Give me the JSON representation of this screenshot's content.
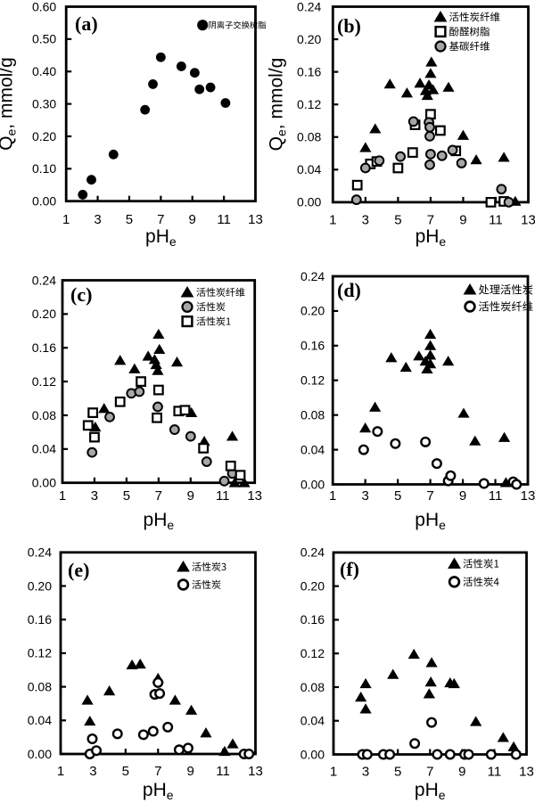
{
  "figure": {
    "background": "#ffffff",
    "colors": {
      "ink": "#000000",
      "gray_marker_fill": "#a6a6a6",
      "white": "#ffffff"
    }
  },
  "chart_data": [
    {
      "id": "a",
      "type": "scatter",
      "panel_label": "(a)",
      "x": {
        "label": "pH",
        "label_sub": "e",
        "min": 1,
        "max": 13,
        "ticks": [
          1,
          3,
          5,
          7,
          9,
          11,
          13
        ]
      },
      "y": {
        "label": "Q",
        "label_sub": "e",
        "label_suffix": ", mmol/g",
        "show_label": true,
        "min": 0,
        "max": 0.6,
        "tick_labels": [
          "0.00",
          "0.10",
          "0.20",
          "0.30",
          "0.40",
          "0.50",
          "0.60"
        ]
      },
      "series": [
        {
          "name": "阴离子交换树脂",
          "marker": "circle-filled",
          "points": [
            [
              2.05,
              0.02
            ],
            [
              2.6,
              0.066
            ],
            [
              4.0,
              0.144
            ],
            [
              6.0,
              0.282
            ],
            [
              6.5,
              0.361
            ],
            [
              7.0,
              0.444
            ],
            [
              8.3,
              0.416
            ],
            [
              9.15,
              0.396
            ],
            [
              9.45,
              0.345
            ],
            [
              10.15,
              0.351
            ],
            [
              11.1,
              0.303
            ]
          ]
        }
      ],
      "layout": {
        "frame": [
          74.2,
          7.5,
          286.5,
          225.7
        ],
        "legend": [
          227.2,
          28.2,
          16.5,
          233.5,
          9.3
        ],
        "ytick_gap": 11,
        "letter": [
          84,
          34
        ],
        "xtick_baseline": 251,
        "xlabel_baseline": 272,
        "ylabel_center": [
          13.5,
          116.5
        ]
      }
    },
    {
      "id": "b",
      "type": "scatter",
      "panel_label": "(b)",
      "x": {
        "label": "pH",
        "label_sub": "e",
        "min": 1,
        "max": 13,
        "ticks": [
          1,
          3,
          5,
          7,
          9,
          11,
          13
        ]
      },
      "y": {
        "label": "Q",
        "label_sub": "e",
        "label_suffix": ", mmol/g",
        "show_label": true,
        "min": 0,
        "max": 0.24,
        "tick_labels": [
          "0.00",
          "0.04",
          "0.08",
          "0.12",
          "0.16",
          "0.20",
          "0.24"
        ]
      },
      "series": [
        {
          "name": "活性炭纤维",
          "marker": "triangle-filled",
          "points": [
            [
              3.0,
              0.067
            ],
            [
              3.6,
              0.09
            ],
            [
              4.5,
              0.145
            ],
            [
              5.55,
              0.134
            ],
            [
              6.35,
              0.146
            ],
            [
              6.7,
              0.137
            ],
            [
              6.8,
              0.131
            ],
            [
              6.9,
              0.144
            ],
            [
              7.0,
              0.158
            ],
            [
              7.05,
              0.172
            ],
            [
              7.15,
              0.138
            ],
            [
              8.1,
              0.141
            ],
            [
              9.0,
              0.082
            ],
            [
              9.8,
              0.052
            ],
            [
              11.5,
              0.055
            ],
            [
              12.2,
              0.001
            ]
          ]
        },
        {
          "name": "酚醛树脂",
          "marker": "square-open",
          "points": [
            [
              2.5,
              0.021
            ],
            [
              3.3,
              0.047
            ],
            [
              3.7,
              0.05
            ],
            [
              5.0,
              0.042
            ],
            [
              5.9,
              0.061
            ],
            [
              6.05,
              0.095
            ],
            [
              7.0,
              0.108
            ],
            [
              7.6,
              0.088
            ],
            [
              8.55,
              0.063
            ],
            [
              10.7,
              0.0
            ],
            [
              11.5,
              0.001
            ]
          ]
        },
        {
          "name": "基碳纤维",
          "marker": "circle-gray",
          "points": [
            [
              2.45,
              0.003
            ],
            [
              3.0,
              0.042
            ],
            [
              3.85,
              0.051
            ],
            [
              5.15,
              0.056
            ],
            [
              5.95,
              0.099
            ],
            [
              6.9,
              0.098
            ],
            [
              6.95,
              0.092
            ],
            [
              6.95,
              0.081
            ],
            [
              6.95,
              0.046
            ],
            [
              7.0,
              0.059
            ],
            [
              7.7,
              0.057
            ],
            [
              8.35,
              0.064
            ],
            [
              8.9,
              0.048
            ],
            [
              11.35,
              0.016
            ],
            [
              11.8,
              0.0
            ]
          ]
        }
      ],
      "layout": {
        "frame": [
          373.3,
          7.5,
          592.5,
          226.9
        ],
        "legend": [
          494,
          19,
          16.5,
          503.5,
          11.5
        ],
        "ytick_gap": 13,
        "letter": [
          378,
          36.5
        ],
        "xtick_baseline": 251.5,
        "xlabel_baseline": 272,
        "ylabel_center": [
          316.5,
          117
        ]
      }
    },
    {
      "id": "c",
      "type": "scatter",
      "panel_label": "(c)",
      "x": {
        "label": "pH",
        "label_sub": "e",
        "min": 1,
        "max": 13,
        "ticks": [
          1,
          3,
          5,
          7,
          9,
          11,
          13
        ]
      },
      "y": {
        "label": "Q",
        "label_sub": "e",
        "label_suffix": ", mmol/g",
        "show_label": false,
        "min": 0,
        "max": 0.24,
        "tick_labels": [
          "0.00",
          "0.04",
          "0.08",
          "0.12",
          "0.16",
          "0.20",
          "0.24"
        ]
      },
      "series": [
        {
          "name": "活性炭纤维",
          "marker": "triangle-filled",
          "points": [
            [
              3.05,
              0.066
            ],
            [
              3.6,
              0.088
            ],
            [
              4.6,
              0.145
            ],
            [
              5.5,
              0.135
            ],
            [
              6.35,
              0.15
            ],
            [
              6.75,
              0.146
            ],
            [
              6.85,
              0.14
            ],
            [
              6.95,
              0.133
            ],
            [
              7.0,
              0.176
            ],
            [
              7.05,
              0.158
            ],
            [
              8.15,
              0.143
            ],
            [
              9.05,
              0.083
            ],
            [
              9.85,
              0.049
            ],
            [
              11.6,
              0.055
            ],
            [
              11.75,
              0.0
            ],
            [
              12.35,
              0.0
            ]
          ]
        },
        {
          "name": "活性炭",
          "marker": "circle-gray",
          "points": [
            [
              2.85,
              0.036
            ],
            [
              3.95,
              0.078
            ],
            [
              5.3,
              0.106
            ],
            [
              5.8,
              0.108
            ],
            [
              6.95,
              0.09
            ],
            [
              8.0,
              0.063
            ],
            [
              9.0,
              0.055
            ],
            [
              10.0,
              0.025
            ],
            [
              11.1,
              0.002
            ],
            [
              11.6,
              0.011
            ]
          ]
        },
        {
          "name": "活性炭1",
          "marker": "square-open",
          "points": [
            [
              2.6,
              0.068
            ],
            [
              2.9,
              0.083
            ],
            [
              3.0,
              0.054
            ],
            [
              4.6,
              0.096
            ],
            [
              5.9,
              0.12
            ],
            [
              6.9,
              0.077
            ],
            [
              7.0,
              0.11
            ],
            [
              8.25,
              0.085
            ],
            [
              8.65,
              0.086
            ],
            [
              9.8,
              0.041
            ],
            [
              11.5,
              0.02
            ],
            [
              12.1,
              0.009
            ]
          ]
        }
      ],
      "layout": {
        "frame": [
          70,
          314.5,
          285.7,
          541.7
        ],
        "legend": [
          210,
          328,
          16.3,
          220,
          11
        ],
        "ytick_gap": 7,
        "letter": [
          79,
          338
        ],
        "xtick_baseline": 561,
        "xlabel_baseline": 590,
        "ylabel_center": null
      }
    },
    {
      "id": "d",
      "type": "scatter",
      "panel_label": "(d)",
      "x": {
        "label": "pH",
        "label_sub": "e",
        "min": 1,
        "max": 13,
        "ticks": [
          1,
          3,
          5,
          7,
          9,
          11,
          13
        ]
      },
      "y": {
        "label": "Q",
        "label_sub": "e",
        "label_suffix": ", mmol/g",
        "show_label": false,
        "min": 0,
        "max": 0.24,
        "tick_labels": [
          "0.00",
          "0.04",
          "0.08",
          "0.12",
          "0.16",
          "0.20",
          "0.24"
        ]
      },
      "series": [
        {
          "name": "处理活性炭",
          "marker": "triangle-filled",
          "points": [
            [
              3.0,
              0.065
            ],
            [
              3.6,
              0.089
            ],
            [
              4.6,
              0.146
            ],
            [
              5.5,
              0.135
            ],
            [
              6.3,
              0.148
            ],
            [
              6.7,
              0.142
            ],
            [
              6.8,
              0.133
            ],
            [
              7.0,
              0.139
            ],
            [
              7.0,
              0.149
            ],
            [
              7.0,
              0.16
            ],
            [
              7.0,
              0.173
            ],
            [
              8.1,
              0.142
            ],
            [
              9.05,
              0.082
            ],
            [
              9.75,
              0.05
            ],
            [
              11.55,
              0.054
            ],
            [
              11.65,
              0.002
            ]
          ]
        },
        {
          "name": "活性炭纤维",
          "marker": "circle-open",
          "points": [
            [
              2.9,
              0.04
            ],
            [
              3.75,
              0.061
            ],
            [
              4.85,
              0.047
            ],
            [
              6.7,
              0.049
            ],
            [
              7.4,
              0.024
            ],
            [
              8.1,
              0.004
            ],
            [
              8.25,
              0.01
            ],
            [
              10.3,
              0.001
            ],
            [
              12.1,
              0.003
            ],
            [
              12.3,
              0.0
            ]
          ]
        }
      ],
      "layout": {
        "frame": [
          373.2,
          310,
          592,
          543.5
        ],
        "legend": [
          527,
          325,
          19,
          536.5,
          12.3
        ],
        "ytick_gap": 9,
        "letter": [
          378,
          333
        ],
        "xtick_baseline": 561,
        "xlabel_baseline": 590,
        "ylabel_center": null
      }
    },
    {
      "id": "e",
      "type": "scatter",
      "panel_label": "(e)",
      "x": {
        "label": "pH",
        "label_sub": "e",
        "min": 1,
        "max": 13,
        "ticks": [
          1,
          3,
          5,
          7,
          9,
          11,
          13
        ]
      },
      "y": {
        "label": "Q",
        "label_sub": "e",
        "label_suffix": ", mmol/g",
        "show_label": false,
        "min": 0,
        "max": 0.24,
        "tick_labels": [
          "0.00",
          "0.04",
          "0.08",
          "0.12",
          "0.16",
          "0.20",
          "0.24"
        ]
      },
      "series": [
        {
          "name": "活性炭3",
          "marker": "triangle-filled",
          "points": [
            [
              2.65,
              0.064
            ],
            [
              2.8,
              0.039
            ],
            [
              4.0,
              0.075
            ],
            [
              5.4,
              0.106
            ],
            [
              5.9,
              0.107
            ],
            [
              7.0,
              0.09
            ],
            [
              8.05,
              0.064
            ],
            [
              9.05,
              0.052
            ],
            [
              9.95,
              0.025
            ],
            [
              11.1,
              0.003
            ],
            [
              11.6,
              0.012
            ]
          ]
        },
        {
          "name": "活性炭",
          "marker": "circle-open",
          "points": [
            [
              2.8,
              0.0
            ],
            [
              2.95,
              0.018
            ],
            [
              3.2,
              0.004
            ],
            [
              4.5,
              0.024
            ],
            [
              6.1,
              0.023
            ],
            [
              6.7,
              0.027
            ],
            [
              6.8,
              0.071
            ],
            [
              7.0,
              0.085
            ],
            [
              7.1,
              0.072
            ],
            [
              7.6,
              0.032
            ],
            [
              8.3,
              0.005
            ],
            [
              8.85,
              0.007
            ],
            [
              12.3,
              0.0
            ],
            [
              12.6,
              0.0
            ]
          ]
        }
      ],
      "layout": {
        "frame": [
          68,
          619.8,
          286.5,
          846
        ],
        "legend": [
          205.5,
          636,
          20,
          215,
          11
        ],
        "ytick_gap": 10,
        "letter": [
          76,
          647
        ],
        "xtick_baseline": 870,
        "xlabel_baseline": 893,
        "ylabel_center": null
      }
    },
    {
      "id": "f",
      "type": "scatter",
      "panel_label": "(f)",
      "x": {
        "label": "pH",
        "label_sub": "e",
        "min": 1,
        "max": 13,
        "ticks": [
          1,
          3,
          5,
          7,
          9,
          11,
          13
        ]
      },
      "y": {
        "label": "Q",
        "label_sub": "e",
        "label_suffix": ", mmol/g",
        "show_label": false,
        "min": 0,
        "max": 0.24,
        "tick_labels": [
          "0.00",
          "0.04",
          "0.08",
          "0.12",
          "0.16",
          "0.20",
          "0.24"
        ]
      },
      "series": [
        {
          "name": "活性炭1",
          "marker": "triangle-filled",
          "points": [
            [
              2.7,
              0.068
            ],
            [
              3.0,
              0.084
            ],
            [
              3.0,
              0.054
            ],
            [
              4.7,
              0.095
            ],
            [
              6.0,
              0.119
            ],
            [
              6.95,
              0.072
            ],
            [
              7.05,
              0.086
            ],
            [
              7.1,
              0.109
            ],
            [
              8.25,
              0.085
            ],
            [
              8.5,
              0.084
            ],
            [
              9.85,
              0.039
            ],
            [
              11.55,
              0.02
            ],
            [
              12.2,
              0.009
            ]
          ]
        },
        {
          "name": "活性炭4",
          "marker": "circle-open",
          "points": [
            [
              2.8,
              0.0
            ],
            [
              3.1,
              0.0
            ],
            [
              4.1,
              0.0
            ],
            [
              4.5,
              0.0
            ],
            [
              6.05,
              0.013
            ],
            [
              7.1,
              0.038
            ],
            [
              7.45,
              0.0
            ],
            [
              8.25,
              0.0
            ],
            [
              9.15,
              0.0
            ],
            [
              9.4,
              0.0
            ],
            [
              10.8,
              0.0
            ],
            [
              12.35,
              0.0
            ]
          ]
        }
      ],
      "layout": {
        "frame": [
          374,
          619.9,
          590.5,
          846.5
        ],
        "legend": [
          509.5,
          632.5,
          20.4,
          519,
          11.5
        ],
        "ytick_gap": 10,
        "letter": [
          381,
          646
        ],
        "xtick_baseline": 870.5,
        "xlabel_baseline": 893,
        "ylabel_center": null
      }
    }
  ]
}
